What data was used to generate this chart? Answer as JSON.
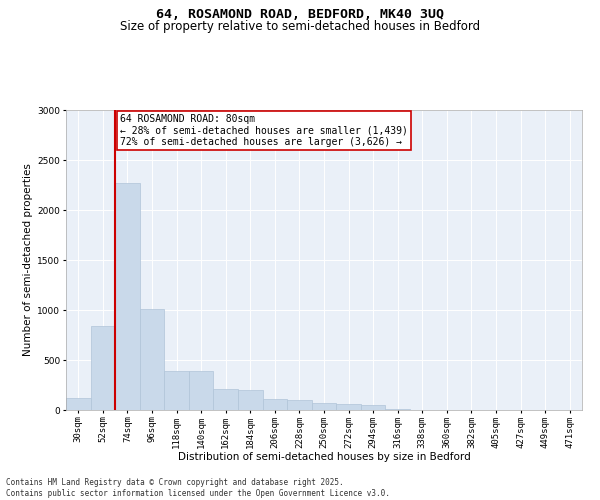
{
  "title_line1": "64, ROSAMOND ROAD, BEDFORD, MK40 3UQ",
  "title_line2": "Size of property relative to semi-detached houses in Bedford",
  "xlabel": "Distribution of semi-detached houses by size in Bedford",
  "ylabel": "Number of semi-detached properties",
  "bar_color": "#c9d9ea",
  "bar_edge_color": "#b0c4d8",
  "background_color": "#eaf0f8",
  "annotation_box_color": "#ffffff",
  "annotation_box_edge": "#cc0000",
  "vline_color": "#cc0000",
  "annotation_line1": "64 ROSAMOND ROAD: 80sqm",
  "annotation_line2": "← 28% of semi-detached houses are smaller (1,439)",
  "annotation_line3": "72% of semi-detached houses are larger (3,626) →",
  "footer_line1": "Contains HM Land Registry data © Crown copyright and database right 2025.",
  "footer_line2": "Contains public sector information licensed under the Open Government Licence v3.0.",
  "categories": [
    "30sqm",
    "52sqm",
    "74sqm",
    "96sqm",
    "118sqm",
    "140sqm",
    "162sqm",
    "184sqm",
    "206sqm",
    "228sqm",
    "250sqm",
    "272sqm",
    "294sqm",
    "316sqm",
    "338sqm",
    "360sqm",
    "382sqm",
    "405sqm",
    "427sqm",
    "449sqm",
    "471sqm"
  ],
  "values": [
    120,
    840,
    2270,
    1010,
    390,
    390,
    210,
    205,
    115,
    100,
    75,
    60,
    50,
    15,
    5,
    5,
    3,
    3,
    2,
    2,
    1
  ],
  "ylim": [
    0,
    3000
  ],
  "yticks": [
    0,
    500,
    1000,
    1500,
    2000,
    2500,
    3000
  ],
  "title_fontsize": 9.5,
  "subtitle_fontsize": 8.5,
  "axis_label_fontsize": 7.5,
  "tick_fontsize": 6.5,
  "annotation_fontsize": 7,
  "footer_fontsize": 5.5,
  "vline_bar_index": 2
}
